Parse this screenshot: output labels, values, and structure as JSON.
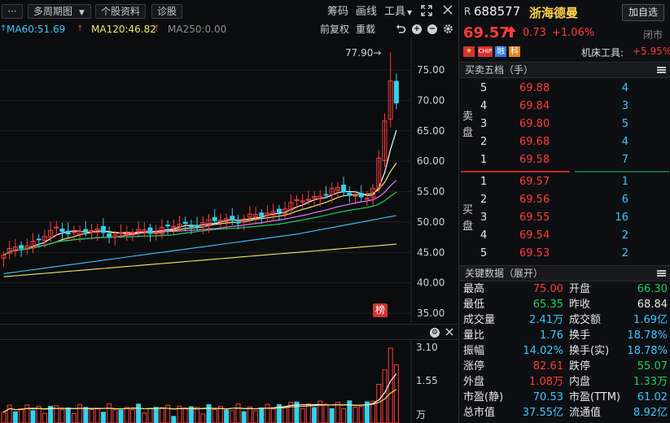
{
  "toolbar": {
    "menu_label": "···",
    "period_label": "多周期图",
    "stock_info_label": "个股资料",
    "diagnose_label": "诊股",
    "chips_label": "筹码",
    "draw_label": "画线",
    "tools_label": "工具"
  },
  "ma": {
    "ma60": "MA60:51.69",
    "ma120": "MA120:46.82",
    "ma250": "MA250:0.00",
    "ma60_color": "#3ec7ff",
    "ma120_color": "#f1e86b",
    "ma250_color": "#8e8e8e"
  },
  "chart_controls": {
    "adjust_label": "前复权",
    "overlay_label": "重载"
  },
  "price_chart": {
    "high_marker": "77.90→",
    "rank_badge": "榜",
    "y_ticks": [
      "75.00",
      "70.00",
      "65.00",
      "60.00",
      "55.00",
      "50.00",
      "45.00",
      "40.00",
      "35.00"
    ]
  },
  "volume_chart": {
    "y_ticks": [
      "3.10",
      "1.55"
    ],
    "unit": "万"
  },
  "stock": {
    "prefix": "R",
    "code": "688577",
    "name": "浙海德曼",
    "add_watch_label": "加自选",
    "price": "69.57",
    "change": "0.73",
    "change_pct": "+1.06%",
    "status": "闭市",
    "tag_cn": "中",
    "tag_chip": "CHIP",
    "tag_margin": "融",
    "tag_tech": "科",
    "sector_label": "机床工具:",
    "sector_change": "+5.95%"
  },
  "order_book": {
    "title": "买卖五档（手）",
    "sell_label": "卖盘",
    "buy_label": "买盘",
    "asks": [
      {
        "level": "5",
        "price": "69.88",
        "volume": "4"
      },
      {
        "level": "4",
        "price": "69.84",
        "volume": "3"
      },
      {
        "level": "3",
        "price": "69.80",
        "volume": "5"
      },
      {
        "level": "2",
        "price": "69.68",
        "volume": "4"
      },
      {
        "level": "1",
        "price": "69.58",
        "volume": "7"
      }
    ],
    "bids": [
      {
        "level": "1",
        "price": "69.57",
        "volume": "1"
      },
      {
        "level": "2",
        "price": "69.56",
        "volume": "6"
      },
      {
        "level": "3",
        "price": "69.55",
        "volume": "16"
      },
      {
        "level": "4",
        "price": "69.54",
        "volume": "2"
      },
      {
        "level": "5",
        "price": "69.53",
        "volume": "2"
      }
    ]
  },
  "key_data": {
    "title": "关键数据（展开）",
    "rows": [
      {
        "l1": "最高",
        "v1": "75.00",
        "l2": "开盘",
        "v2": "66.30"
      },
      {
        "l1": "最低",
        "v1": "65.35",
        "l2": "昨收",
        "v2": "68.84"
      },
      {
        "l1": "成交量",
        "v1": "2.41万",
        "l2": "成交额",
        "v2": "1.69亿"
      },
      {
        "l1": "量比",
        "v1": "1.76",
        "l2": "换手",
        "v2": "18.78%"
      },
      {
        "l1": "振幅",
        "v1": "14.02%",
        "l2": "换手(实)",
        "v2": "18.78%"
      },
      {
        "l1": "涨停",
        "v1": "82.61",
        "l2": "跌停",
        "v2": "55.07"
      },
      {
        "l1": "外盘",
        "v1": "1.08万",
        "l2": "内盘",
        "v2": "1.33万"
      },
      {
        "l1": "市盈(静)",
        "v1": "70.53",
        "l2": "市盈(TTM)",
        "v2": "61.02"
      },
      {
        "l1": "总市值",
        "v1": "37.55亿",
        "l2": "流通值",
        "v2": "8.92亿"
      }
    ]
  }
}
